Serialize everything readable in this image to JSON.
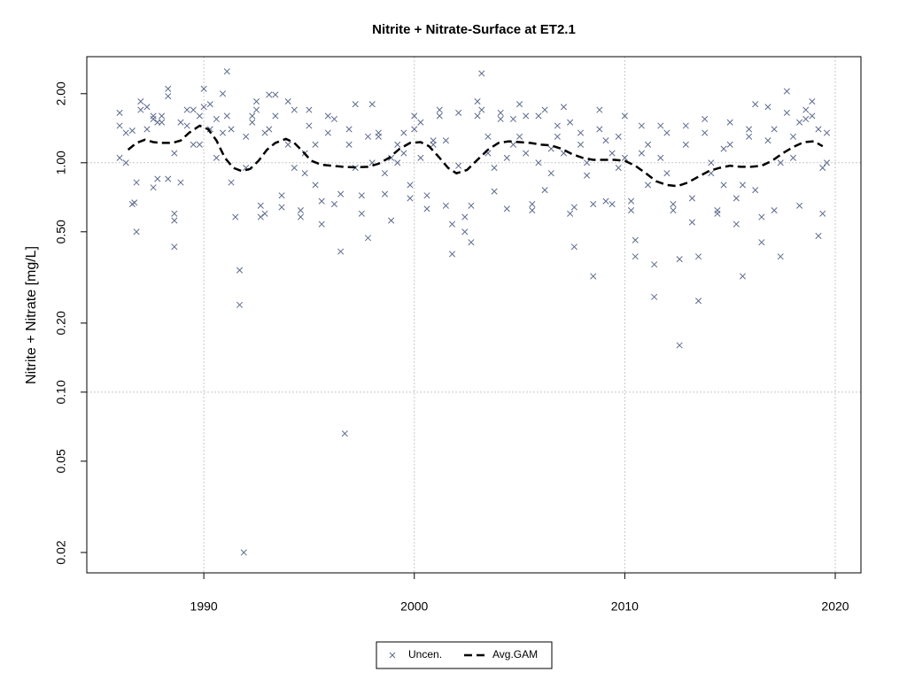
{
  "chart_data": {
    "type": "scatter",
    "title": "Nitrite + Nitrate-Surface at ET2.1",
    "ylabel": "Nitrite + Nitrate [mg/L]",
    "ylog": true,
    "xlim": [
      1984.44,
      2021.22
    ],
    "ylim": [
      0.0163,
      2.9
    ],
    "xticks": [
      1990,
      2000,
      2010,
      2020
    ],
    "yticks": [
      0.02,
      0.05,
      {
        "value": 0.1,
        "label": "0.10"
      },
      {
        "value": 0.2,
        "label": "0.20"
      },
      {
        "value": 0.5,
        "label": "0.50"
      },
      {
        "value": 1,
        "label": "1.00"
      },
      {
        "value": 2,
        "label": "2.00"
      }
    ],
    "xgrid": true,
    "ygrid": [
      0.1,
      1
    ],
    "legend": "bottom",
    "series": [
      {
        "name": "Uncen.",
        "type": "scatter",
        "color": "#5d6b8c",
        "x": [
          1986.0,
          1986.0,
          1986.0,
          1986.3,
          1986.3,
          1986.6,
          1986.7,
          1986.6,
          1986.8,
          1986.8,
          1987.0,
          1987.0,
          1987.3,
          1987.3,
          1987.6,
          1987.6,
          1987.6,
          1987.8,
          1987.8,
          1988.0,
          1988.0,
          1988.3,
          1988.3,
          1988.3,
          1988.6,
          1988.6,
          1988.6,
          1988.6,
          1988.9,
          1988.9,
          1989.2,
          1989.2,
          1989.5,
          1989.5,
          1989.8,
          1989.8,
          1990.0,
          1990.0,
          1990.3,
          1990.3,
          1990.6,
          1990.6,
          1990.9,
          1990.9,
          1991.1,
          1991.1,
          1991.3,
          1991.3,
          1991.5,
          1991.7,
          1991.7,
          1991.9,
          1992.0,
          1992.0,
          1992.3,
          1992.3,
          1992.5,
          1992.5,
          1992.7,
          1992.7,
          1992.9,
          1992.9,
          1993.1,
          1993.1,
          1993.4,
          1993.4,
          1993.7,
          1993.7,
          1994.0,
          1994.0,
          1994.3,
          1994.3,
          1994.6,
          1994.6,
          1994.8,
          1994.8,
          1995.0,
          1995.0,
          1995.3,
          1995.3,
          1995.6,
          1995.6,
          1995.9,
          1995.9,
          1996.2,
          1996.2,
          1996.5,
          1996.5,
          1996.7,
          1996.9,
          1996.9,
          1997.2,
          1997.2,
          1997.5,
          1997.5,
          1997.8,
          1997.8,
          1998.0,
          1998.0,
          1998.3,
          1998.3,
          1998.6,
          1998.6,
          1998.9,
          1998.9,
          1999.2,
          1999.2,
          1999.5,
          1999.5,
          1999.8,
          1999.8,
          2000.0,
          2000.0,
          2000.3,
          2000.3,
          2000.6,
          2000.6,
          2000.9,
          2000.9,
          2001.2,
          2001.2,
          2001.5,
          2001.5,
          2001.8,
          2001.8,
          2002.1,
          2002.1,
          2002.4,
          2002.4,
          2002.7,
          2002.7,
          2003.0,
          2003.0,
          2003.2,
          2003.2,
          2003.5,
          2003.5,
          2003.8,
          2003.8,
          2004.1,
          2004.1,
          2004.4,
          2004.4,
          2004.7,
          2004.7,
          2005.0,
          2005.0,
          2005.3,
          2005.3,
          2005.6,
          2005.6,
          2005.9,
          2005.9,
          2006.2,
          2006.2,
          2006.5,
          2006.5,
          2006.8,
          2006.8,
          2007.1,
          2007.1,
          2007.4,
          2007.4,
          2007.6,
          2007.6,
          2007.9,
          2007.9,
          2008.2,
          2008.2,
          2008.5,
          2008.5,
          2008.8,
          2008.8,
          2009.1,
          2009.1,
          2009.4,
          2009.4,
          2009.7,
          2009.7,
          2010.0,
          2010.0,
          2010.3,
          2010.3,
          2010.5,
          2010.5,
          2010.8,
          2010.8,
          2011.1,
          2011.1,
          2011.4,
          2011.4,
          2011.7,
          2011.7,
          2012.0,
          2012.0,
          2012.3,
          2012.3,
          2012.6,
          2012.6,
          2012.9,
          2012.9,
          2013.2,
          2013.2,
          2013.5,
          2013.5,
          2013.8,
          2013.8,
          2014.1,
          2014.1,
          2014.4,
          2014.4,
          2014.7,
          2014.7,
          2015.0,
          2015.0,
          2015.3,
          2015.3,
          2015.6,
          2015.6,
          2015.9,
          2015.9,
          2016.2,
          2016.2,
          2016.5,
          2016.5,
          2016.8,
          2016.8,
          2017.1,
          2017.1,
          2017.4,
          2017.4,
          2017.7,
          2017.7,
          2018.0,
          2018.0,
          2018.3,
          2018.3,
          2018.6,
          2018.6,
          2018.9,
          2018.9,
          2019.2,
          2019.2,
          2019.4,
          2019.4,
          2019.6,
          2019.6
        ],
        "values": [
          1.65,
          1.05,
          1.45,
          1.35,
          1.0,
          0.66,
          0.67,
          1.38,
          0.82,
          0.5,
          1.85,
          1.7,
          1.4,
          1.75,
          1.55,
          0.78,
          1.6,
          0.85,
          1.5,
          1.6,
          1.5,
          1.95,
          2.1,
          0.85,
          0.43,
          0.56,
          1.1,
          0.6,
          0.82,
          1.5,
          1.7,
          1.45,
          1.2,
          1.7,
          1.2,
          1.6,
          1.75,
          2.1,
          1.8,
          1.4,
          1.55,
          1.05,
          1.35,
          2.0,
          2.5,
          1.6,
          0.82,
          1.4,
          0.58,
          0.24,
          0.34,
          0.02,
          1.3,
          0.95,
          1.5,
          1.6,
          1.85,
          1.7,
          0.65,
          0.58,
          0.6,
          1.35,
          1.98,
          1.4,
          1.98,
          1.6,
          0.72,
          0.64,
          1.85,
          1.2,
          1.7,
          0.95,
          0.58,
          0.62,
          1.1,
          0.9,
          1.7,
          1.45,
          0.8,
          1.2,
          0.68,
          0.54,
          1.6,
          1.35,
          1.55,
          0.66,
          0.73,
          0.41,
          0.066,
          1.4,
          1.2,
          1.8,
          0.95,
          0.72,
          0.6,
          1.3,
          0.47,
          1.8,
          1.0,
          1.3,
          1.35,
          0.9,
          0.73,
          0.56,
          1.05,
          1.2,
          1.0,
          1.35,
          1.1,
          0.8,
          0.7,
          1.4,
          1.6,
          1.05,
          1.5,
          0.63,
          0.72,
          1.2,
          1.25,
          1.7,
          1.6,
          1.25,
          0.65,
          0.4,
          0.54,
          1.65,
          0.97,
          0.58,
          0.5,
          0.45,
          0.65,
          1.85,
          1.6,
          2.45,
          1.7,
          1.1,
          1.3,
          0.75,
          0.95,
          1.65,
          1.55,
          0.63,
          1.05,
          1.2,
          1.55,
          1.8,
          1.3,
          1.6,
          1.1,
          0.62,
          0.66,
          1.6,
          1.0,
          0.76,
          1.7,
          0.9,
          1.15,
          1.45,
          1.3,
          1.75,
          1.1,
          0.6,
          1.5,
          0.43,
          0.64,
          1.35,
          1.2,
          1.0,
          0.88,
          0.32,
          0.66,
          1.7,
          1.4,
          0.68,
          1.25,
          0.66,
          1.1,
          1.3,
          0.95,
          1.6,
          1.05,
          0.62,
          0.68,
          0.46,
          0.39,
          1.45,
          1.1,
          1.2,
          0.8,
          0.36,
          0.26,
          1.05,
          1.45,
          1.35,
          0.9,
          0.66,
          0.62,
          0.38,
          0.16,
          1.45,
          1.2,
          0.7,
          0.55,
          0.39,
          0.25,
          1.35,
          1.55,
          1.0,
          0.9,
          0.62,
          0.6,
          1.15,
          0.8,
          1.5,
          1.2,
          0.7,
          0.54,
          0.32,
          0.8,
          1.4,
          1.3,
          1.8,
          0.76,
          0.45,
          0.58,
          1.75,
          1.25,
          1.4,
          0.62,
          0.39,
          1.0,
          1.65,
          2.05,
          1.3,
          1.05,
          1.5,
          0.65,
          1.55,
          1.7,
          1.85,
          1.6,
          1.4,
          0.48,
          0.6,
          0.95,
          1.0,
          1.35
        ]
      },
      {
        "name": "Avg.GAM",
        "type": "line",
        "color": "#000000",
        "x": [
          1986.4,
          1986.8,
          1987.2,
          1987.6,
          1988.0,
          1988.5,
          1988.9,
          1989.3,
          1989.8,
          1990.2,
          1990.6,
          1991.0,
          1991.4,
          1991.8,
          1992.2,
          1992.6,
          1993.0,
          1993.4,
          1993.9,
          1994.3,
          1994.7,
          1995.1,
          1995.6,
          1996.1,
          1996.6,
          1997.2,
          1997.8,
          1998.3,
          1998.8,
          1999.3,
          1999.8,
          2000.3,
          2000.7,
          2001.2,
          2001.6,
          2002.0,
          2002.5,
          2003.0,
          2003.5,
          2004.0,
          2004.5,
          2005.0,
          2005.5,
          2006.0,
          2006.5,
          2007.0,
          2007.5,
          2008.0,
          2008.5,
          2009.0,
          2009.5,
          2010.0,
          2010.5,
          2011.0,
          2011.5,
          2012.0,
          2012.5,
          2013.0,
          2013.5,
          2014.0,
          2014.5,
          2015.0,
          2015.5,
          2016.0,
          2016.5,
          2017.0,
          2017.5,
          2018.0,
          2018.5,
          2019.0,
          2019.4
        ],
        "values": [
          1.14,
          1.22,
          1.26,
          1.23,
          1.22,
          1.22,
          1.25,
          1.35,
          1.45,
          1.4,
          1.25,
          1.05,
          0.95,
          0.92,
          0.94,
          1.02,
          1.14,
          1.22,
          1.27,
          1.22,
          1.12,
          1.02,
          0.98,
          0.97,
          0.96,
          0.955,
          0.96,
          0.99,
          1.05,
          1.15,
          1.22,
          1.23,
          1.18,
          1.05,
          0.95,
          0.9,
          0.93,
          1.03,
          1.14,
          1.22,
          1.24,
          1.23,
          1.22,
          1.2,
          1.19,
          1.15,
          1.09,
          1.05,
          1.03,
          1.03,
          1.03,
          1.02,
          0.97,
          0.9,
          0.83,
          0.8,
          0.79,
          0.82,
          0.87,
          0.92,
          0.95,
          0.97,
          0.96,
          0.96,
          0.97,
          1.02,
          1.1,
          1.17,
          1.23,
          1.24,
          1.18
        ]
      }
    ]
  }
}
